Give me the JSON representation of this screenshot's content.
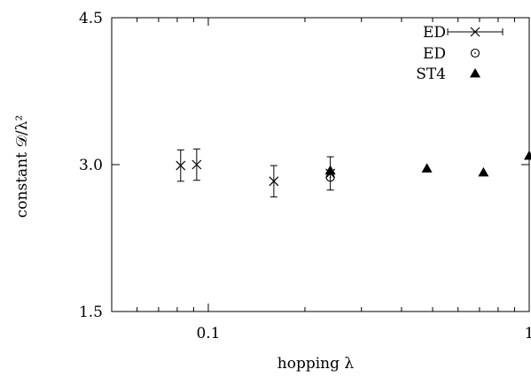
{
  "chart_data": {
    "type": "scatter",
    "xlabel": "hopping λ",
    "ylabel": "constant 𝒟/λ²",
    "xscale": "log",
    "xlim": [
      0.05,
      1.0
    ],
    "ylim": [
      1.5,
      4.5
    ],
    "yticks": [
      1.5,
      3.0,
      4.5
    ],
    "ytick_labels": [
      "1.5",
      "3.0",
      "4.5"
    ],
    "xticks": [
      0.1,
      1.0
    ],
    "xtick_labels": [
      "0.1",
      "1"
    ],
    "grid": false,
    "legend_position": "top-right",
    "series": [
      {
        "name": "ED",
        "marker": "cross-errorbar",
        "points": [
          {
            "x": 0.082,
            "y": 2.99,
            "yerr": 0.16
          },
          {
            "x": 0.092,
            "y": 3.0,
            "yerr": 0.16
          },
          {
            "x": 0.16,
            "y": 2.83,
            "yerr": 0.16
          },
          {
            "x": 0.24,
            "y": 2.91,
            "yerr": 0.17
          }
        ]
      },
      {
        "name": "ED",
        "marker": "open-circle",
        "points": [
          {
            "x": 0.24,
            "y": 2.87
          }
        ]
      },
      {
        "name": "ST4",
        "marker": "filled-triangle",
        "points": [
          {
            "x": 0.24,
            "y": 2.94
          },
          {
            "x": 0.48,
            "y": 2.96
          },
          {
            "x": 0.72,
            "y": 2.92
          },
          {
            "x": 1.0,
            "y": 3.09
          }
        ]
      }
    ]
  }
}
